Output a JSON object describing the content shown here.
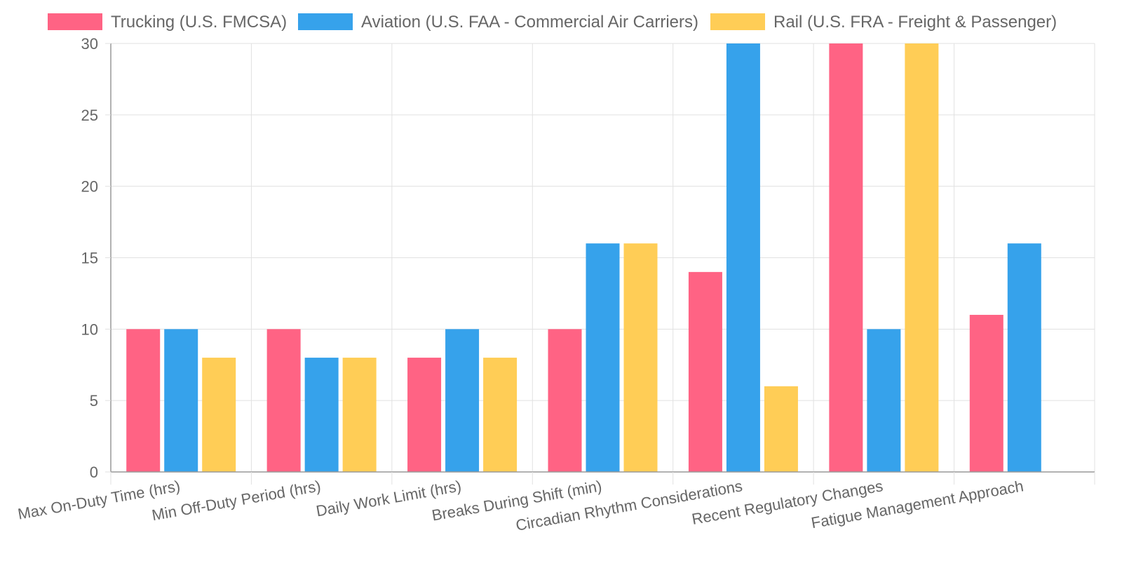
{
  "chart_data": {
    "type": "bar",
    "categories": [
      "Max On-Duty Time (hrs)",
      "Min Off-Duty Period (hrs)",
      "Daily Work Limit (hrs)",
      "Breaks During Shift (min)",
      "Circadian Rhythm Considerations",
      "Recent Regulatory Changes",
      "Fatigue Management Approach"
    ],
    "series": [
      {
        "name": "Trucking (U.S. FMCSA)",
        "color": "#ff6384",
        "values": [
          10,
          10,
          8,
          10,
          14,
          30,
          11
        ]
      },
      {
        "name": "Aviation (U.S. FAA - Commercial Air Carriers)",
        "color": "#36a2eb",
        "values": [
          10,
          8,
          10,
          16,
          30,
          10,
          16
        ]
      },
      {
        "name": "Rail (U.S. FRA - Freight & Passenger)",
        "color": "#ffcd56",
        "values": [
          8,
          8,
          8,
          16,
          6,
          30,
          null
        ]
      }
    ],
    "ylim": [
      0,
      30
    ],
    "yticks": [
      0,
      5,
      10,
      15,
      20,
      25,
      30
    ],
    "grid": true,
    "legend_position": "top",
    "title": "",
    "xlabel": "",
    "ylabel": ""
  }
}
